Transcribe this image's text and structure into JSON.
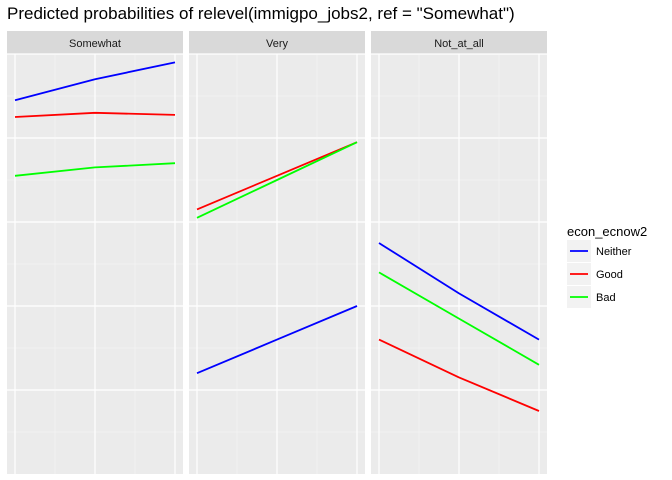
{
  "chart_data": {
    "type": "line",
    "title": "Predicted probabilities of relevel(immigpo_jobs2, ref = \"Somewhat\")",
    "xlabel": "",
    "ylabel": "",
    "x": [
      1,
      2,
      3
    ],
    "ylim": [
      0.0,
      1.0
    ],
    "legend": {
      "title": "econ_ecnow2",
      "placement": "right",
      "entries": [
        "Neither",
        "Good",
        "Bad"
      ]
    },
    "colors": {
      "Neither": "#0000ff",
      "Good": "#ff0000",
      "Bad": "#00ff00"
    },
    "panels": [
      {
        "name": "Somewhat",
        "series": [
          {
            "name": "Neither",
            "values": [
              0.89,
              0.94,
              0.98
            ]
          },
          {
            "name": "Good",
            "values": [
              0.85,
              0.86,
              0.855
            ]
          },
          {
            "name": "Bad",
            "values": [
              0.71,
              0.73,
              0.74
            ]
          }
        ]
      },
      {
        "name": "Very",
        "series": [
          {
            "name": "Neither",
            "values": [
              0.24,
              0.32,
              0.4
            ]
          },
          {
            "name": "Good",
            "values": [
              0.63,
              0.71,
              0.79
            ]
          },
          {
            "name": "Bad",
            "values": [
              0.61,
              0.7,
              0.79
            ]
          }
        ]
      },
      {
        "name": "Not_at_all",
        "series": [
          {
            "name": "Neither",
            "values": [
              0.55,
              0.43,
              0.32
            ]
          },
          {
            "name": "Good",
            "values": [
              0.32,
              0.23,
              0.15
            ]
          },
          {
            "name": "Bad",
            "values": [
              0.48,
              0.37,
              0.26
            ]
          }
        ]
      }
    ],
    "grid": true
  }
}
